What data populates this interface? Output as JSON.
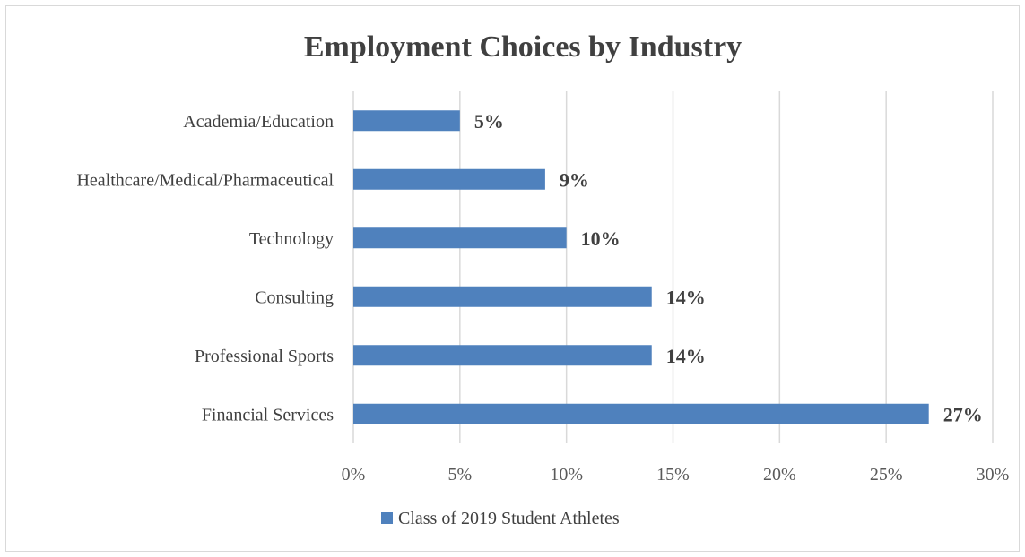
{
  "chart_data": {
    "type": "bar",
    "orientation": "horizontal",
    "title": "Employment Choices by Industry",
    "categories": [
      "Academia/Education",
      "Healthcare/Medical/Pharmaceutical",
      "Technology",
      "Consulting",
      "Professional Sports",
      "Financial Services"
    ],
    "series": [
      {
        "name": "Class of 2019 Student Athletes",
        "values": [
          5,
          9,
          10,
          14,
          14,
          27
        ],
        "labels": [
          "5%",
          "9%",
          "10%",
          "14%",
          "14%",
          "27%"
        ],
        "color": "#4f81bd"
      }
    ],
    "xlim": [
      0,
      30
    ],
    "xticks": [
      0,
      5,
      10,
      15,
      20,
      25,
      30
    ],
    "xtick_labels": [
      "0%",
      "5%",
      "10%",
      "15%",
      "20%",
      "25%",
      "30%"
    ],
    "grid": true,
    "legend_position": "bottom"
  }
}
